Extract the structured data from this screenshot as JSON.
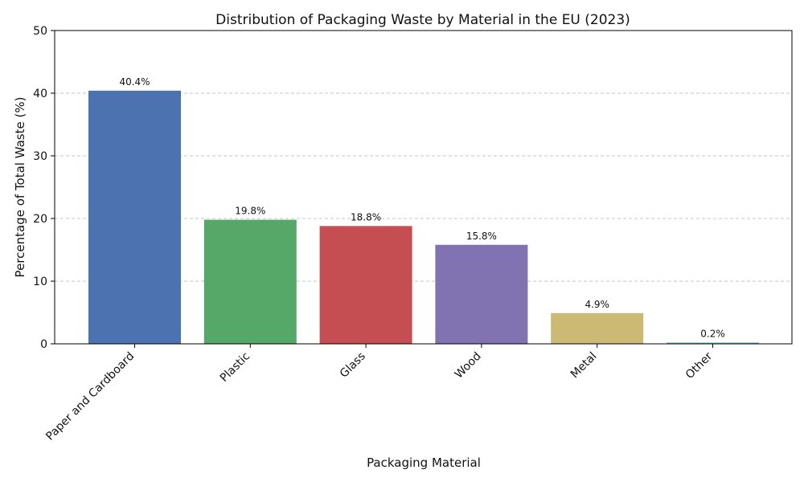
{
  "chart_data": {
    "type": "bar",
    "title": "Distribution of Packaging Waste by Material in the EU (2023)",
    "xlabel": "Packaging Material",
    "ylabel": "Percentage of Total Waste (%)",
    "categories": [
      "Paper and Cardboard",
      "Plastic",
      "Glass",
      "Wood",
      "Metal",
      "Other"
    ],
    "values": [
      40.4,
      19.8,
      18.8,
      15.8,
      4.9,
      0.2
    ],
    "data_labels": [
      "40.4%",
      "19.8%",
      "18.8%",
      "15.8%",
      "4.9%",
      "0.2%"
    ],
    "colors": [
      "#4c72b0",
      "#55a868",
      "#c44e52",
      "#8172b2",
      "#ccb974",
      "#64b5cd"
    ],
    "ylim": [
      0,
      50
    ],
    "yticks": [
      0,
      10,
      20,
      30,
      40,
      50
    ],
    "grid": "y-dashed",
    "legend": "none"
  }
}
